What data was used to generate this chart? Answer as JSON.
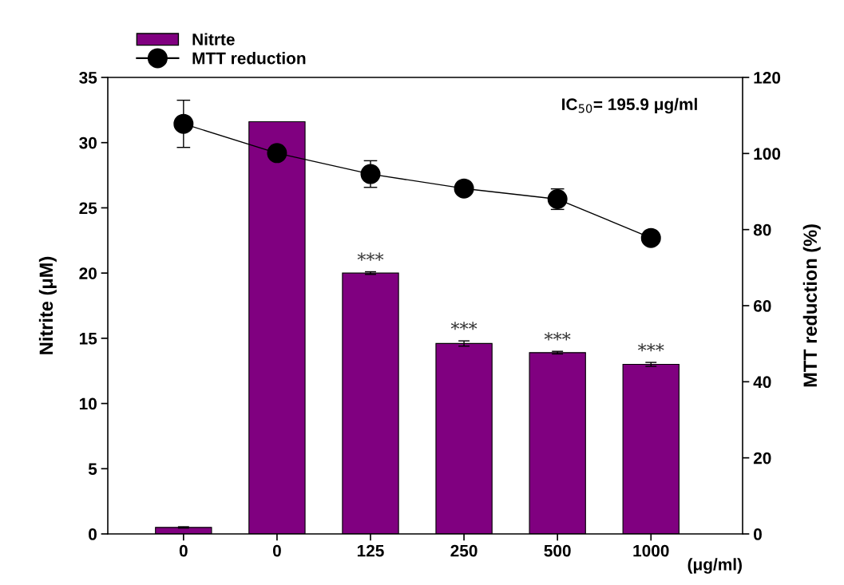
{
  "chart_data": {
    "type": "bar",
    "categories": [
      "0",
      "0",
      "125",
      "250",
      "500",
      "1000"
    ],
    "xlabel": "(μg/ml)",
    "ylabel": "Nitrite (μM)",
    "y2label": "MTT reduction (%)",
    "ylim": [
      0,
      35
    ],
    "yticks": [
      0,
      5,
      10,
      15,
      20,
      25,
      30,
      35
    ],
    "y2lim": [
      0,
      120
    ],
    "y2ticks": [
      0,
      20,
      40,
      60,
      80,
      100,
      120
    ],
    "series": [
      {
        "name": "Nitrte",
        "color": "#800080",
        "values": [
          0.5,
          31.6,
          20.0,
          14.6,
          13.9,
          13.0
        ],
        "errors": [
          0.05,
          null,
          0.1,
          0.2,
          0.1,
          0.15
        ],
        "value_labels": [
          null,
          null,
          "***",
          "***",
          "***",
          "***"
        ]
      },
      {
        "name": "MTT reduction",
        "type": "line",
        "axis": "y2",
        "color": "#000000",
        "marker": "circle",
        "line_style": "solid",
        "values": [
          107.8,
          100.1,
          94.6,
          90.8,
          88.0,
          77.8
        ],
        "errors": [
          6.2,
          null,
          3.5,
          1.0,
          2.7,
          null
        ]
      }
    ],
    "annotations": [
      "IC$_{50}$= 195.9 μg/ml"
    ],
    "legend": "top left",
    "grid": false
  }
}
